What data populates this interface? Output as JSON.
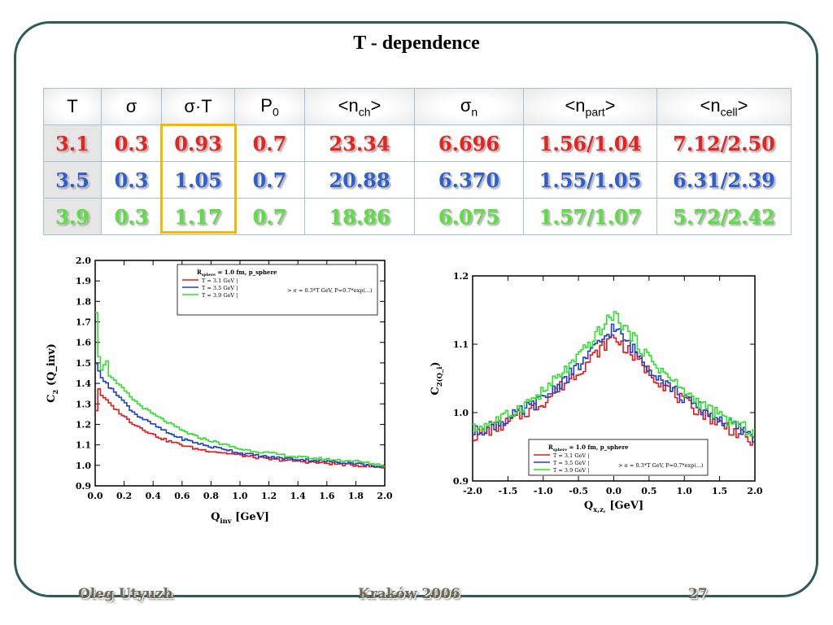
{
  "title": "T - dependence",
  "table": {
    "headers": [
      {
        "main": "T",
        "sub": ""
      },
      {
        "main": "σ",
        "sub": ""
      },
      {
        "main": "σ·T",
        "sub": ""
      },
      {
        "main": "P",
        "sub": "0"
      },
      {
        "main": "<n",
        "sub": "ch",
        "tail": ">"
      },
      {
        "main": "σ",
        "sub": "n"
      },
      {
        "main": "<n",
        "sub": "part",
        "tail": ">"
      },
      {
        "main": "<n",
        "sub": "cell",
        "tail": ">"
      }
    ],
    "rows": [
      {
        "color": "#e8231f",
        "cells": [
          "3.1",
          "0.3",
          "0.93",
          "0.7",
          "23.34",
          "6.696",
          "1.56/1.04",
          "7.12/2.50"
        ]
      },
      {
        "color": "#2f5fcf",
        "cells": [
          "3.5",
          "0.3",
          "1.05",
          "0.7",
          "20.88",
          "6.370",
          "1.55/1.05",
          "6.31/2.39"
        ]
      },
      {
        "color": "#58e03e",
        "cells": [
          "3.9",
          "0.3",
          "1.17",
          "0.7",
          "18.86",
          "6.075",
          "1.57/1.07",
          "5.72/2.42"
        ]
      }
    ],
    "highlight_column": "σ·T",
    "highlight_color": "#f5b800"
  },
  "chart_data": [
    {
      "type": "line",
      "xlabel": "Q_inv   [GeV]",
      "ylabel": "C_2 (Q_inv)",
      "xlim": [
        0.0,
        2.0
      ],
      "ylim": [
        0.9,
        2.0
      ],
      "xticks": [
        "0.0",
        "0.2",
        "0.4",
        "0.6",
        "0.8",
        "1.0",
        "1.2",
        "1.4",
        "1.6",
        "1.8",
        "2.0"
      ],
      "yticks": [
        "0.9",
        "1.0",
        "1.1",
        "1.2",
        "1.3",
        "1.4",
        "1.5",
        "1.6",
        "1.7",
        "1.8",
        "1.9",
        "2.0"
      ],
      "legend": {
        "position": "top-right",
        "header": "R_sphere = 1.0 fm, p_sphere",
        "note": "> σ = 0.3*T GeV, P=0.7*exp(...)",
        "entries": [
          "T = 3.1 GeV",
          "T = 3.5 GeV",
          "T = 3.9 GeV"
        ]
      },
      "series": [
        {
          "name": "T = 3.1 GeV",
          "color": "#e31a1c",
          "x": [
            0.01,
            0.03,
            0.05,
            0.08,
            0.1,
            0.15,
            0.2,
            0.25,
            0.3,
            0.4,
            0.5,
            0.6,
            0.7,
            0.8,
            0.9,
            1.0,
            1.2,
            1.4,
            1.6,
            1.8,
            2.0
          ],
          "y": [
            1.27,
            1.39,
            1.33,
            1.32,
            1.3,
            1.27,
            1.24,
            1.21,
            1.19,
            1.15,
            1.12,
            1.1,
            1.08,
            1.07,
            1.06,
            1.05,
            1.03,
            1.02,
            1.01,
            1.0,
            0.99
          ]
        },
        {
          "name": "T = 3.5 GeV",
          "color": "#1f3ec8",
          "x": [
            0.01,
            0.03,
            0.05,
            0.08,
            0.1,
            0.15,
            0.2,
            0.25,
            0.3,
            0.4,
            0.5,
            0.6,
            0.7,
            0.8,
            0.9,
            1.0,
            1.2,
            1.4,
            1.6,
            1.8,
            2.0
          ],
          "y": [
            1.5,
            1.45,
            1.42,
            1.41,
            1.38,
            1.35,
            1.31,
            1.27,
            1.24,
            1.2,
            1.16,
            1.13,
            1.11,
            1.09,
            1.08,
            1.06,
            1.04,
            1.03,
            1.02,
            1.01,
            0.99
          ]
        },
        {
          "name": "T = 3.9 GeV",
          "color": "#2ee02a",
          "x": [
            0.01,
            0.03,
            0.05,
            0.08,
            0.1,
            0.15,
            0.2,
            0.25,
            0.3,
            0.4,
            0.5,
            0.6,
            0.7,
            0.8,
            0.9,
            1.0,
            1.2,
            1.4,
            1.6,
            1.8,
            2.0
          ],
          "y": [
            1.75,
            1.5,
            1.46,
            1.52,
            1.44,
            1.4,
            1.37,
            1.33,
            1.3,
            1.25,
            1.21,
            1.17,
            1.14,
            1.12,
            1.1,
            1.08,
            1.06,
            1.04,
            1.03,
            1.02,
            1.0
          ]
        }
      ]
    },
    {
      "type": "line",
      "xlabel": "Q_x,z,   [GeV]",
      "ylabel": "C_2(Q_i)",
      "xlim": [
        -2.0,
        2.0
      ],
      "ylim": [
        0.9,
        1.2
      ],
      "xticks": [
        "-2.0",
        "-1.5",
        "-1.0",
        "-0.5",
        "0.0",
        "0.5",
        "1.0",
        "1.5",
        "2.0"
      ],
      "yticks": [
        "0.9",
        "1.0",
        "1.1",
        "1.2"
      ],
      "legend": {
        "position": "bottom-center",
        "header": "R_sphere = 1.0 fm, p_sphere",
        "note": "> σ = 0.3*T GeV, P=0.7*exp(...)",
        "entries": [
          "T = 3.1 GeV",
          "T = 3.5 GeV",
          "T = 3.9 GeV"
        ]
      },
      "series": [
        {
          "name": "T = 3.1 GeV",
          "color": "#e31a1c",
          "x": [
            -2.0,
            -1.5,
            -1.0,
            -0.5,
            0.0,
            0.5,
            1.0,
            1.5,
            2.0
          ],
          "y": [
            0.965,
            0.985,
            1.015,
            1.06,
            1.112,
            1.06,
            1.015,
            0.985,
            0.955
          ]
        },
        {
          "name": "T = 3.5 GeV",
          "color": "#1f3ec8",
          "x": [
            -2.0,
            -1.5,
            -1.0,
            -0.5,
            0.0,
            0.5,
            1.0,
            1.5,
            2.0
          ],
          "y": [
            0.97,
            0.99,
            1.02,
            1.067,
            1.125,
            1.067,
            1.02,
            0.99,
            0.965
          ]
        },
        {
          "name": "T = 3.9 GeV",
          "color": "#2ee02a",
          "x": [
            -2.0,
            -1.5,
            -1.0,
            -0.5,
            0.0,
            0.5,
            1.0,
            1.5,
            2.0
          ],
          "y": [
            0.975,
            0.995,
            1.03,
            1.08,
            1.145,
            1.08,
            1.03,
            0.995,
            0.97
          ]
        }
      ]
    }
  ],
  "footer": {
    "author": "Oleg Utyuzh",
    "event": "Kraków 2006",
    "page": "27"
  }
}
